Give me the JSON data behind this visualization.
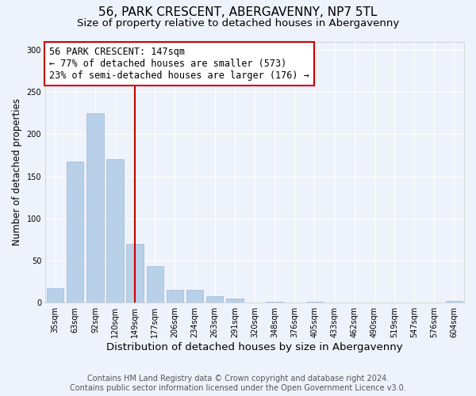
{
  "title": "56, PARK CRESCENT, ABERGAVENNY, NP7 5TL",
  "subtitle": "Size of property relative to detached houses in Abergavenny",
  "xlabel": "Distribution of detached houses by size in Abergavenny",
  "ylabel": "Number of detached properties",
  "categories": [
    "35sqm",
    "63sqm",
    "92sqm",
    "120sqm",
    "149sqm",
    "177sqm",
    "206sqm",
    "234sqm",
    "263sqm",
    "291sqm",
    "320sqm",
    "348sqm",
    "376sqm",
    "405sqm",
    "433sqm",
    "462sqm",
    "490sqm",
    "519sqm",
    "547sqm",
    "576sqm",
    "604sqm"
  ],
  "values": [
    17,
    168,
    225,
    170,
    70,
    43,
    15,
    15,
    8,
    5,
    0,
    1,
    0,
    1,
    0,
    0,
    0,
    0,
    0,
    0,
    2
  ],
  "bar_color": "#b8d0e8",
  "bar_edge_color": "#9ab8d8",
  "vline_x_index": 4,
  "vline_color": "#cc0000",
  "annotation_text": "56 PARK CRESCENT: 147sqm\n← 77% of detached houses are smaller (573)\n23% of semi-detached houses are larger (176) →",
  "annotation_box_color": "#ffffff",
  "annotation_box_edge": "#cc0000",
  "ylim": [
    0,
    310
  ],
  "yticks": [
    0,
    50,
    100,
    150,
    200,
    250,
    300
  ],
  "background_color": "#eef2fa",
  "grid_color": "#ffffff",
  "footer_line1": "Contains HM Land Registry data © Crown copyright and database right 2024.",
  "footer_line2": "Contains public sector information licensed under the Open Government Licence v3.0.",
  "title_fontsize": 11,
  "subtitle_fontsize": 9.5,
  "xlabel_fontsize": 9.5,
  "ylabel_fontsize": 8.5,
  "annotation_fontsize": 8.5,
  "footer_fontsize": 7,
  "tick_fontsize": 7
}
